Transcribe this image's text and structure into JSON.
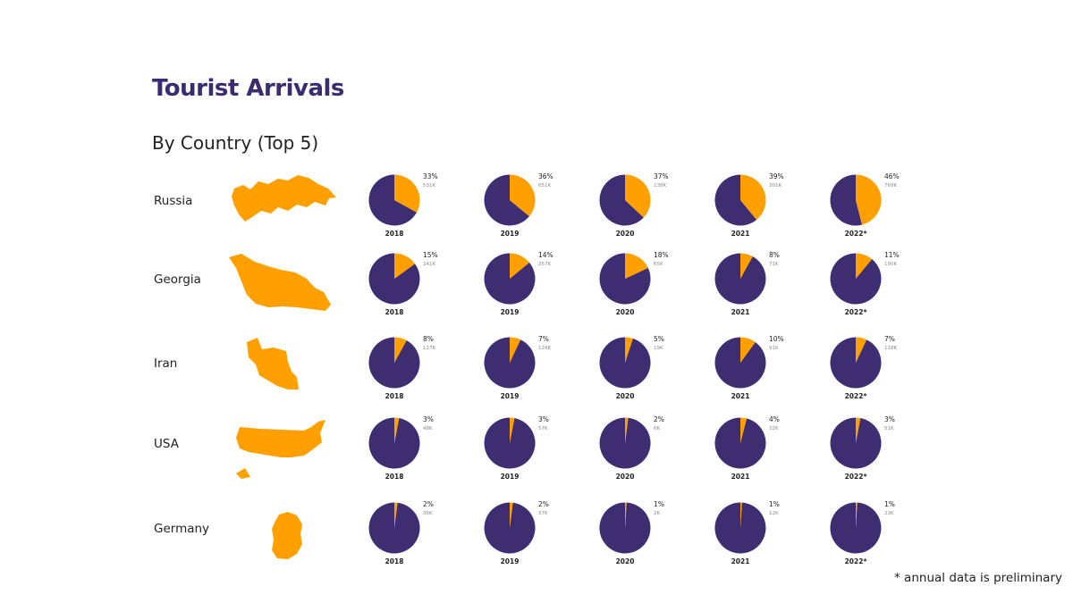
{
  "header": {
    "title": "Tourist Arrivals",
    "subtitle": "By Country (Top 5)"
  },
  "footnote": "* annual data is preliminary",
  "colors": {
    "share": "#ffa000",
    "rest": "#3f2d72",
    "title": "#3b2b6f",
    "map": "#ffa000"
  },
  "chart_data": {
    "type": "pie",
    "title": "Tourist Arrivals",
    "subtitle": "By Country (Top 5)",
    "years": [
      "2018",
      "2019",
      "2020",
      "2021",
      "2022*"
    ],
    "countries": [
      {
        "name": "Russia",
        "map_icon": "russia-map-icon",
        "shares": [
          33,
          36,
          37,
          39,
          46
        ],
        "pct_labels": [
          "33%",
          "36%",
          "37%",
          "39%",
          "46%"
        ],
        "counts": [
          "531K",
          "651K",
          "138K",
          "301K",
          "769K"
        ]
      },
      {
        "name": "Georgia",
        "map_icon": "georgia-map-icon",
        "shares": [
          15,
          14,
          18,
          8,
          11
        ],
        "pct_labels": [
          "15%",
          "14%",
          "18%",
          "8%",
          "11%"
        ],
        "counts": [
          "241K",
          "257K",
          "65K",
          "71K",
          "190K"
        ]
      },
      {
        "name": "Iran",
        "map_icon": "iran-map-icon",
        "shares": [
          8,
          7,
          5,
          10,
          7
        ],
        "pct_labels": [
          "8%",
          "7%",
          "5%",
          "10%",
          "7%"
        ],
        "counts": [
          "127K",
          "124K",
          "19K",
          "91K",
          "118K"
        ]
      },
      {
        "name": "USA",
        "map_icon": "usa-map-icon",
        "shares": [
          3,
          3,
          2,
          4,
          3
        ],
        "pct_labels": [
          "3%",
          "3%",
          "2%",
          "4%",
          "3%"
        ],
        "counts": [
          "48K",
          "57K",
          "6K",
          "32K",
          "51K"
        ]
      },
      {
        "name": "Germany",
        "map_icon": "germany-map-icon",
        "shares": [
          2,
          2,
          1,
          1,
          1
        ],
        "pct_labels": [
          "2%",
          "2%",
          "1%",
          "1%",
          "1%"
        ],
        "counts": [
          "36K",
          "37K",
          "2K",
          "12K",
          "23K"
        ]
      }
    ]
  }
}
